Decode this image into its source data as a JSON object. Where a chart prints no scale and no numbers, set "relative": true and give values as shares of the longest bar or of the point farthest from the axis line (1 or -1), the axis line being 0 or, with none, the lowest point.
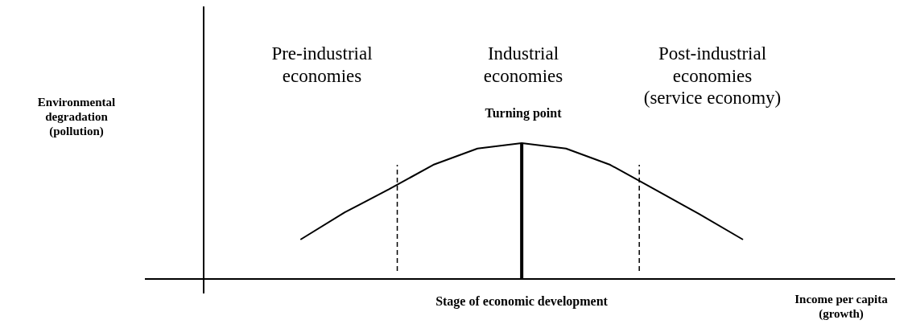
{
  "chart_data": {
    "type": "line",
    "relative": true,
    "xlabel": "Income per capita (growth)",
    "categories": [
      null,
      null,
      null,
      null,
      null,
      null,
      null,
      null,
      null,
      null,
      null
    ],
    "series": [
      {
        "color": "#000000",
        "values": [
          0.29,
          0.49,
          0.66,
          0.84,
          0.96,
          1.0,
          0.96,
          0.84,
          0.66,
          0.48,
          0.29
        ]
      }
    ],
    "annotations": [
      "Environmental degradation (pollution)",
      "Pre-industrial economies",
      "Industrial economies",
      "Post-industrial economies (service economy)",
      "Turning point",
      "Stage of economic development"
    ],
    "grid": false,
    "marker": "none",
    "line_style": "solid"
  }
}
